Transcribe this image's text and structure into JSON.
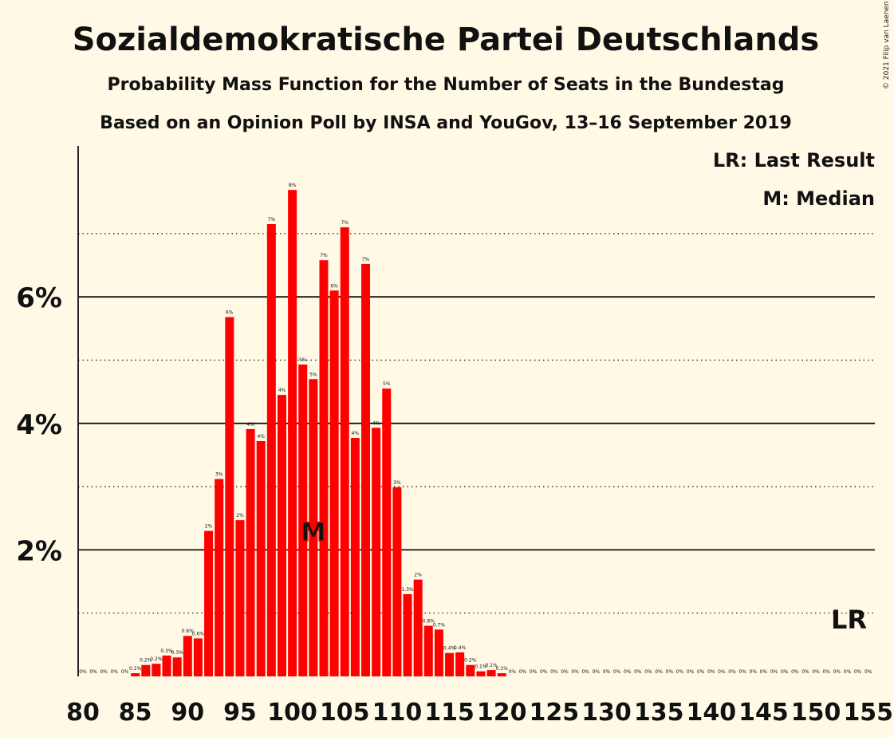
{
  "copyright": "© 2021 Filip van Laenen",
  "chart_data": {
    "type": "bar",
    "title": "Sozialdemokratische Partei Deutschlands",
    "subtitle": "Probability Mass Function for the Number of Seats in the Bundestag",
    "subtitle2": "Based on an Opinion Poll by INSA and YouGov, 13–16 September 2019",
    "legend": [
      "LR: Last Result",
      "M: Median"
    ],
    "legend_placement": "top-right",
    "bar_color": "#FF0000",
    "background_color": "#FFF9E6",
    "x": [
      80,
      81,
      82,
      83,
      84,
      85,
      86,
      87,
      88,
      89,
      90,
      91,
      92,
      93,
      94,
      95,
      96,
      97,
      98,
      99,
      100,
      101,
      102,
      103,
      104,
      105,
      106,
      107,
      108,
      109,
      110,
      111,
      112,
      113,
      114,
      115,
      116,
      117,
      118,
      119,
      120,
      121,
      122,
      123,
      124,
      125,
      126,
      127,
      128,
      129,
      130,
      131,
      132,
      133,
      134,
      135,
      136,
      137,
      138,
      139,
      140,
      141,
      142,
      143,
      144,
      145,
      146,
      147,
      148,
      149,
      150,
      151,
      152,
      153,
      154,
      155
    ],
    "values": [
      0,
      0,
      0,
      0,
      0,
      0.05,
      0.18,
      0.2,
      0.33,
      0.3,
      0.64,
      0.6,
      2.3,
      3.12,
      5.68,
      2.47,
      3.91,
      3.72,
      7.15,
      4.45,
      7.69,
      4.93,
      4.7,
      6.58,
      6.1,
      7.1,
      3.77,
      6.52,
      3.93,
      4.55,
      2.99,
      1.3,
      1.53,
      0.8,
      0.74,
      0.37,
      0.38,
      0.18,
      0.08,
      0.1,
      0.05,
      0,
      0,
      0,
      0,
      0,
      0,
      0,
      0,
      0,
      0,
      0,
      0,
      0,
      0,
      0,
      0,
      0,
      0,
      0,
      0,
      0,
      0,
      0,
      0,
      0,
      0,
      0,
      0,
      0,
      0,
      0,
      0,
      0,
      0,
      0
    ],
    "data_labels": [
      "0%",
      "0%",
      "0%",
      "0%",
      "0%",
      "0.1%",
      "0.2%",
      "0.2%",
      "0.3%",
      "0.3%",
      "0.6%",
      "0.6%",
      "2%",
      "3%",
      "6%",
      "2%",
      "4%",
      "4%",
      "7%",
      "4%",
      "8%",
      "5%",
      "5%",
      "7%",
      "6%",
      "7%",
      "4%",
      "7%",
      "4%",
      "5%",
      "3%",
      "1.3%",
      "2%",
      "0.8%",
      "0.7%",
      "0.4%",
      "0.4%",
      "0.2%",
      "0.1%",
      "0.1%",
      "0.1%",
      "0%",
      "0%",
      "0%",
      "0%",
      "0%",
      "0%",
      "0%",
      "0%",
      "0%",
      "0%",
      "0%",
      "0%",
      "0%",
      "0%",
      "0%",
      "0%",
      "0%",
      "0%",
      "0%",
      "0%",
      "0%",
      "0%",
      "0%",
      "0%",
      "0%",
      "0%",
      "0%",
      "0%",
      "0%",
      "0%",
      "0%",
      "0%",
      "0%",
      "0%",
      "0%"
    ],
    "x_ticks": [
      "80",
      "85",
      "90",
      "95",
      "100",
      "105",
      "110",
      "115",
      "120",
      "125",
      "130",
      "135",
      "140",
      "145",
      "150",
      "155"
    ],
    "y_ticks": [
      "2%",
      "4%",
      "6%"
    ],
    "y_tick_values": [
      2,
      4,
      6
    ],
    "y_dotted_values": [
      1,
      3,
      5,
      7
    ],
    "ylim": [
      0,
      8.4
    ],
    "median_seat": 102,
    "median_label": "M",
    "last_result_seat": 153,
    "last_result_label": "LR",
    "grid": true
  }
}
